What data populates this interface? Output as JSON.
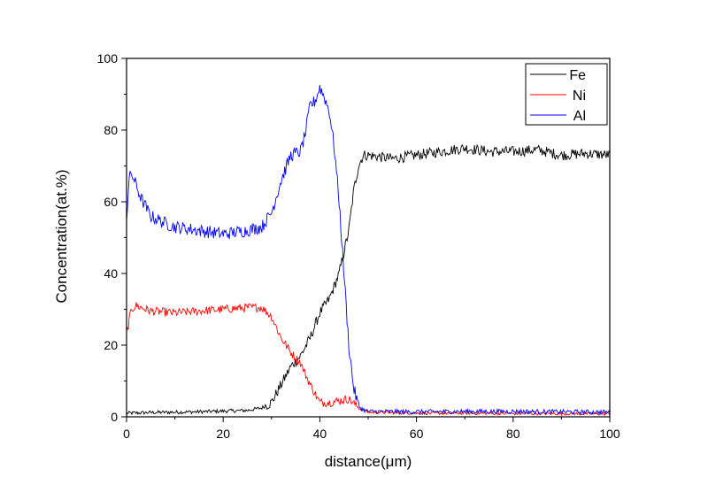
{
  "chart_data": {
    "type": "line",
    "xlabel": "distance(μm)",
    "ylabel": "Concentration(at.%)",
    "xlim": [
      0,
      100
    ],
    "ylim": [
      0,
      100
    ],
    "xticks": [
      "0",
      "20",
      "40",
      "60",
      "80",
      "100"
    ],
    "yticks": [
      "0",
      "20",
      "40",
      "60",
      "80",
      "100"
    ],
    "legend_position": "top-right",
    "grid": false,
    "series": [
      {
        "name": "Fe",
        "color": "#000000",
        "noise": 1.5,
        "x": [
          0,
          5,
          10,
          15,
          20,
          25,
          28,
          30,
          32,
          34,
          36,
          38,
          40,
          42,
          44,
          46,
          47,
          48,
          49,
          50,
          55,
          60,
          65,
          70,
          75,
          80,
          85,
          90,
          95,
          100
        ],
        "y": [
          1.0,
          1.2,
          1.3,
          1.4,
          1.6,
          1.8,
          2.5,
          4.0,
          9.0,
          14.0,
          17.0,
          22.0,
          29.0,
          33.0,
          40.0,
          52.0,
          63.0,
          70.0,
          73.0,
          73.0,
          72.0,
          73.0,
          74.0,
          75.0,
          74.0,
          74.0,
          74.5,
          73.0,
          73.5,
          73.0
        ]
      },
      {
        "name": "Ni",
        "color": "#ff0000",
        "noise": 1.2,
        "x": [
          0,
          1,
          2,
          5,
          10,
          15,
          20,
          25,
          28,
          30,
          32,
          34,
          36,
          38,
          40,
          42,
          44,
          46,
          48,
          50,
          60,
          70,
          80,
          90,
          100
        ],
        "y": [
          23.0,
          30.0,
          31.0,
          29.5,
          29.0,
          29.5,
          30.0,
          30.5,
          30.5,
          28.0,
          22.0,
          18.0,
          15.0,
          9.0,
          4.0,
          4.0,
          4.5,
          5.0,
          2.5,
          1.3,
          1.0,
          1.0,
          0.9,
          0.9,
          0.8
        ]
      },
      {
        "name": "Al",
        "color": "#0000ff",
        "noise": 1.8,
        "x": [
          0,
          0.5,
          1,
          3,
          5,
          8,
          10,
          15,
          20,
          25,
          28,
          30,
          32,
          34,
          36,
          37,
          38,
          39,
          40,
          41,
          42,
          43,
          44,
          45,
          46,
          47,
          48,
          49,
          50,
          60,
          70,
          80,
          90,
          100
        ],
        "y": [
          55.0,
          66.0,
          68.0,
          61.0,
          56.0,
          54.0,
          53.0,
          52.0,
          51.0,
          52.0,
          53.0,
          57.0,
          66.0,
          73.0,
          74.0,
          79.0,
          87.0,
          88.0,
          92.0,
          89.0,
          85.0,
          75.0,
          60.0,
          40.0,
          20.0,
          8.0,
          3.0,
          2.0,
          1.5,
          1.4,
          1.5,
          1.5,
          1.4,
          1.3
        ]
      }
    ]
  }
}
